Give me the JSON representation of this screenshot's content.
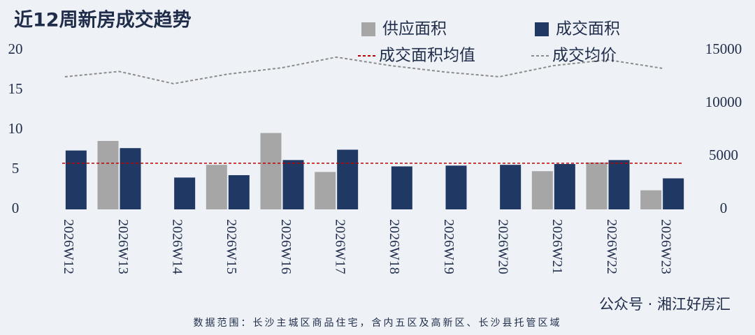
{
  "chart_data": {
    "type": "bar",
    "title": "近12周新房成交趋势",
    "categories": [
      "2026W12",
      "2026W13",
      "2026W14",
      "2026W15",
      "2026W16",
      "2026W17",
      "2026W18",
      "2026W19",
      "2026W20",
      "2026W21",
      "2026W22",
      "2026W23"
    ],
    "series": [
      {
        "name": "供应面积",
        "color": "#a6a6a6",
        "values": [
          null,
          8.6,
          null,
          5.6,
          9.6,
          4.7,
          null,
          null,
          null,
          4.8,
          5.9,
          2.4
        ]
      },
      {
        "name": "成交面积",
        "color": "#1f3864",
        "values": [
          7.4,
          7.7,
          4.0,
          4.3,
          6.2,
          7.5,
          5.4,
          5.5,
          5.6,
          5.7,
          6.2,
          3.9
        ]
      },
      {
        "name": "成交均价",
        "color": "#8c8c8c",
        "axis": "y2",
        "values": [
          12500,
          13000,
          11850,
          12750,
          13350,
          14350,
          13550,
          12950,
          12500,
          13550,
          14100,
          13300
        ]
      }
    ],
    "average": {
      "name": "成交面积均值",
      "color": "#c00000",
      "value": 5.8
    },
    "ylim": [
      0,
      20
    ],
    "yticks": [
      0,
      5,
      10,
      15,
      20
    ],
    "y2lim": [
      0,
      15000
    ],
    "y2ticks": [
      0,
      5000,
      10000,
      15000
    ],
    "footnote": "数据范围：长沙主城区商品住宅，含内五区及高新区、长沙县托管区域",
    "watermark": "公众号 · 湘江好房汇"
  }
}
